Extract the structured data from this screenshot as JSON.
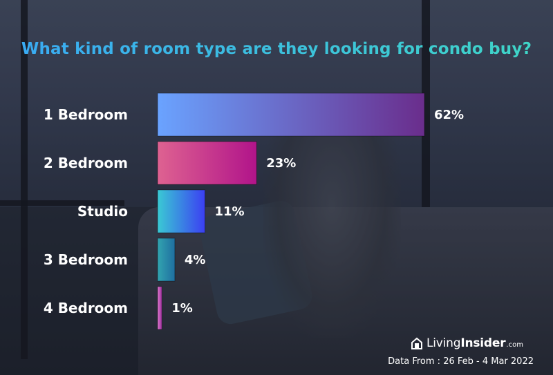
{
  "title": "What kind of room type are they looking for condo buy?",
  "chart_data": {
    "type": "bar",
    "orientation": "horizontal",
    "categories": [
      "1 Bedroom",
      "2 Bedroom",
      "Studio",
      "3 Bedroom",
      "4 Bedroom"
    ],
    "values": [
      62,
      23,
      11,
      4,
      1
    ],
    "value_labels": [
      "62%",
      "23%",
      "11%",
      "4%",
      "1%"
    ],
    "xlim": [
      0,
      62
    ],
    "grid": false,
    "legend": "none",
    "bar_colors": [
      [
        "#6aa3ff",
        "#6a2d8c"
      ],
      [
        "#de6291",
        "#b1148a"
      ],
      [
        "#3ac9d4",
        "#3b3ff2"
      ],
      [
        "#32a3b0",
        "#1f6fa0"
      ],
      [
        "#e07ad0",
        "#9a2d9a"
      ]
    ]
  },
  "brand": {
    "name_light": "Living",
    "name_bold": "Insider",
    "domain": ".com"
  },
  "source": "Data From : 26 Feb - 4 Mar 2022"
}
